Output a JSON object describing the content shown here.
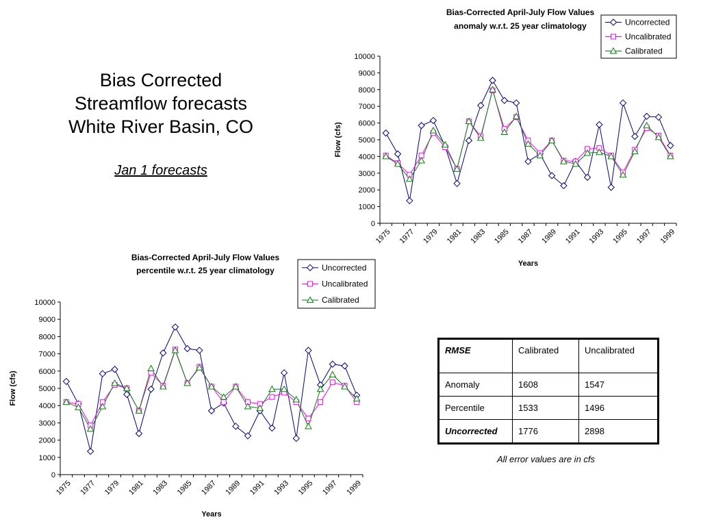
{
  "slide": {
    "title_lines": [
      "Bias Corrected",
      "Streamflow forecasts",
      "White River Basin, CO"
    ],
    "subtitle": "Jan 1 forecasts"
  },
  "chart_data": [
    {
      "type": "line",
      "title_lines": [
        "Bias-Corrected April-July Flow Values",
        "anomaly w.r.t. 25 year climatology"
      ],
      "xlabel": "Years",
      "ylabel": "Flow (cfs)",
      "ylim": [
        0,
        10000
      ],
      "yticks": [
        0,
        1000,
        2000,
        3000,
        4000,
        5000,
        6000,
        7000,
        8000,
        9000,
        10000
      ],
      "x": [
        1975,
        1976,
        1977,
        1978,
        1979,
        1980,
        1981,
        1982,
        1983,
        1984,
        1985,
        1986,
        1987,
        1988,
        1989,
        1990,
        1991,
        1992,
        1993,
        1994,
        1995,
        1996,
        1997,
        1998,
        1999
      ],
      "x_tick_labels": [
        "1975",
        "1977",
        "1979",
        "1981",
        "1983",
        "1985",
        "1987",
        "1989",
        "1991",
        "1993",
        "1995",
        "1997",
        "1999"
      ],
      "legend_position": "top-right",
      "grid": false,
      "series": [
        {
          "name": "Uncorrected",
          "color": "#000080",
          "marker": "diamond",
          "values": [
            5400,
            4150,
            1350,
            5850,
            6150,
            4600,
            2380,
            4950,
            7050,
            8550,
            7350,
            7200,
            3700,
            4150,
            2850,
            2250,
            3700,
            2750,
            5900,
            2150,
            7200,
            5200,
            6400,
            6350,
            4650
          ]
        },
        {
          "name": "Uncalibrated",
          "color": "#ff00ff",
          "marker": "square",
          "values": [
            4050,
            3600,
            2900,
            4050,
            5400,
            4550,
            3250,
            6100,
            5200,
            7950,
            5650,
            6350,
            4950,
            4200,
            4950,
            3750,
            3700,
            4450,
            4500,
            4050,
            3050,
            4400,
            5700,
            5250,
            4050
          ]
        },
        {
          "name": "Calibrated",
          "color": "#008000",
          "marker": "triangle",
          "values": [
            4000,
            3550,
            2650,
            3750,
            5550,
            4700,
            3250,
            6100,
            5100,
            8000,
            5450,
            6400,
            4750,
            4050,
            4950,
            3700,
            3550,
            4200,
            4250,
            4000,
            2900,
            4300,
            5850,
            5150,
            4000
          ]
        }
      ]
    },
    {
      "type": "line",
      "title_lines": [
        "Bias-Corrected April-July Flow Values",
        "percentile w.r.t. 25 year climatology"
      ],
      "xlabel": "Years",
      "ylabel": "Flow (cfs)",
      "ylim": [
        0,
        10000
      ],
      "yticks": [
        0,
        1000,
        2000,
        3000,
        4000,
        5000,
        6000,
        7000,
        8000,
        9000,
        10000
      ],
      "x": [
        1975,
        1976,
        1977,
        1978,
        1979,
        1980,
        1981,
        1982,
        1983,
        1984,
        1985,
        1986,
        1987,
        1988,
        1989,
        1990,
        1991,
        1992,
        1993,
        1994,
        1995,
        1996,
        1997,
        1998,
        1999
      ],
      "x_tick_labels": [
        "1975",
        "1977",
        "1979",
        "1981",
        "1983",
        "1985",
        "1987",
        "1989",
        "1991",
        "1993",
        "1995",
        "1997",
        "1999"
      ],
      "legend_position": "top-right",
      "grid": false,
      "series": [
        {
          "name": "Uncorrected",
          "color": "#000080",
          "marker": "diamond",
          "values": [
            5400,
            4100,
            1350,
            5850,
            6100,
            4650,
            2380,
            4950,
            7050,
            8550,
            7300,
            7200,
            3700,
            4150,
            2800,
            2250,
            3700,
            2700,
            5900,
            2100,
            7200,
            5200,
            6400,
            6300,
            4600
          ]
        },
        {
          "name": "Uncalibrated",
          "color": "#ff00ff",
          "marker": "square",
          "values": [
            4200,
            4100,
            2850,
            4200,
            5200,
            5000,
            3700,
            5900,
            5150,
            7250,
            5300,
            6250,
            5100,
            4200,
            5100,
            4200,
            4100,
            4500,
            4750,
            4200,
            3250,
            4200,
            5350,
            5150,
            4200
          ]
        },
        {
          "name": "Calibrated",
          "color": "#008000",
          "marker": "triangle",
          "values": [
            4200,
            3900,
            2650,
            3950,
            5300,
            5000,
            3700,
            6150,
            5100,
            7200,
            5300,
            6200,
            5100,
            4500,
            5100,
            3950,
            3850,
            4950,
            4950,
            4350,
            2800,
            4950,
            5800,
            5100,
            4400
          ]
        }
      ]
    }
  ],
  "table": {
    "header": [
      "RMSE",
      "Calibrated",
      "Uncalibrated"
    ],
    "rows": [
      [
        "Anomaly",
        "1608",
        "1547"
      ],
      [
        "Percentile",
        "1533",
        "1496"
      ],
      [
        "Uncorrected",
        "1776",
        "2898"
      ]
    ]
  },
  "note": "All error values are in cfs"
}
